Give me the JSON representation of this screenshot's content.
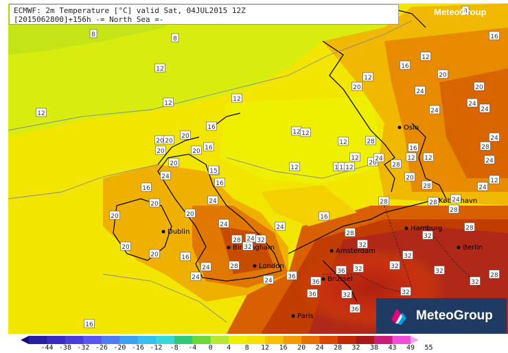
{
  "header": {
    "line1": "ECMWF: 2m Temperature [°C] valid Sat, 04JUL2015 12Z",
    "line2": "[2015062800]+156h  -= North Sea =-"
  },
  "watermark": "MeteoGroup",
  "brand": {
    "name": "MeteoGroup",
    "color": "#1f3b63",
    "accent_colors": [
      "#e6007e",
      "#00a3e0"
    ]
  },
  "colorbar": {
    "ticks": [
      "-44",
      "-38",
      "-32",
      "-26",
      "-20",
      "-16",
      "-12",
      "-8",
      "-4",
      "0",
      "4",
      "8",
      "12",
      "16",
      "20",
      "24",
      "28",
      "32",
      "38",
      "43",
      "49",
      "55"
    ],
    "colors": [
      "#1a0a7a",
      "#2a1fa0",
      "#3a2cc0",
      "#4b3ed8",
      "#5a55ee",
      "#4c7cf0",
      "#3ea0f0",
      "#36c0ee",
      "#38d8d8",
      "#30c878",
      "#6cd83c",
      "#b8e832",
      "#eef000",
      "#f8e000",
      "#f8c000",
      "#f49a00",
      "#e87000",
      "#d84800",
      "#c02800",
      "#a81818",
      "#c8207a",
      "#f050d8",
      "#f8a0f0"
    ]
  },
  "cities": [
    {
      "name": "Oslo"
    },
    {
      "name": "København"
    },
    {
      "name": "Hamburg"
    },
    {
      "name": "Berlin"
    },
    {
      "name": "Amsterdam"
    },
    {
      "name": "Brussel"
    },
    {
      "name": "Paris"
    },
    {
      "name": "London"
    },
    {
      "name": "Birmingham"
    },
    {
      "name": "Dublin"
    }
  ],
  "temperature_labels": [
    "8",
    "8",
    "8",
    "12",
    "12",
    "12",
    "12",
    "12",
    "12",
    "12",
    "12",
    "12",
    "12",
    "12",
    "12",
    "12",
    "12",
    "12",
    "12",
    "12",
    "16",
    "16",
    "16",
    "16",
    "16",
    "16",
    "16",
    "16",
    "16",
    "16",
    "16",
    "15",
    "20",
    "20",
    "20",
    "20",
    "20",
    "20",
    "20",
    "20",
    "20",
    "20",
    "20",
    "20",
    "20",
    "20",
    "20",
    "20",
    "24",
    "24",
    "24",
    "24",
    "24",
    "24",
    "24",
    "24",
    "24",
    "24",
    "24",
    "24",
    "24",
    "24",
    "24",
    "24",
    "24",
    "28",
    "28",
    "28",
    "28",
    "28",
    "28",
    "28",
    "28",
    "28",
    "28",
    "28",
    "28",
    "32",
    "32",
    "32",
    "32",
    "32",
    "32",
    "32",
    "32",
    "32",
    "32",
    "32",
    "36",
    "36",
    "36",
    "36",
    "36"
  ]
}
